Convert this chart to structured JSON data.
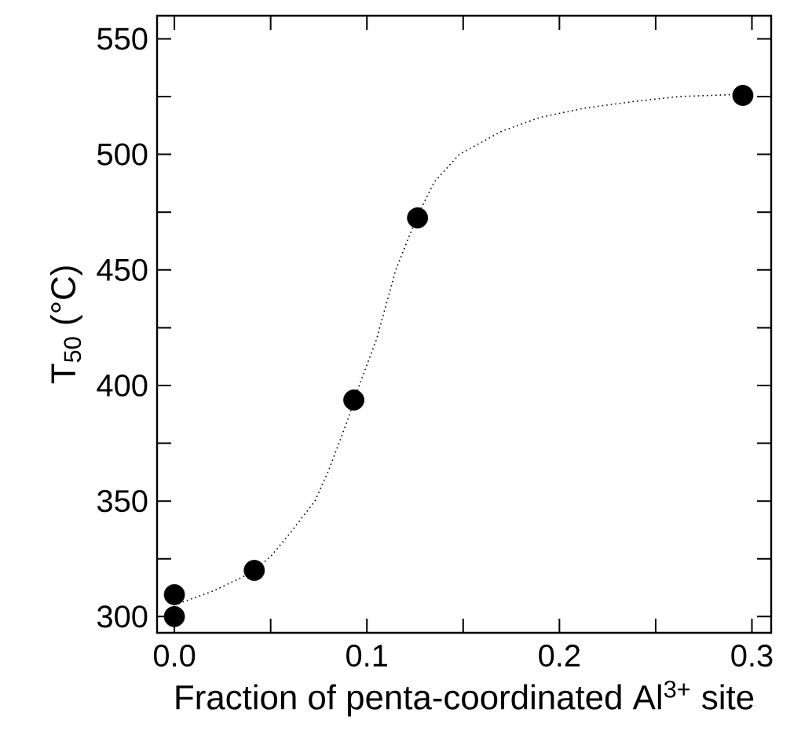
{
  "chart_data": {
    "type": "scatter",
    "xlabel": "Fraction of penta-coordinated Al$^{3+}$ site",
    "ylabel": "T$_{50}$ (°C)",
    "xlim": [
      -0.009,
      0.31
    ],
    "ylim": [
      293,
      560
    ],
    "xticks": [
      {
        "value": 0,
        "label": "0.0"
      },
      {
        "value": 0.05,
        "label": null
      },
      {
        "value": 0.1,
        "label": "0.1"
      },
      {
        "value": 0.15,
        "label": null
      },
      {
        "value": 0.2,
        "label": "0.2"
      },
      {
        "value": 0.25,
        "label": null
      },
      {
        "value": 0.3,
        "label": "0.3"
      }
    ],
    "yticks": [
      300,
      {
        "value": 325,
        "label": null
      },
      350,
      {
        "value": 375,
        "label": null
      },
      400,
      {
        "value": 425,
        "label": null
      },
      450,
      {
        "value": 475,
        "label": null
      },
      500,
      {
        "value": 525,
        "label": null
      },
      550
    ],
    "series": [
      {
        "marker": "circle",
        "color": "#000000",
        "x": [
          0,
          0,
          0.0415,
          0.0932,
          0.1263,
          0.2953
        ],
        "values": [
          300,
          309.5,
          320,
          393.7,
          472.5,
          525.5
        ]
      },
      {
        "type": "line",
        "marker": "none",
        "line_style": "dotted",
        "color": "#000000",
        "x": [
          0,
          0.02,
          0.04,
          0.05,
          0.06,
          0.073,
          0.08,
          0.09,
          0.096,
          0.105,
          0.115,
          0.126,
          0.135,
          0.148,
          0.17,
          0.19,
          0.213,
          0.24,
          0.262,
          0.295
        ],
        "values": [
          305,
          311,
          319,
          326,
          336,
          350,
          363,
          385,
          400,
          420,
          450,
          473,
          488,
          500,
          510,
          516,
          520,
          523,
          525,
          526
        ]
      }
    ]
  }
}
